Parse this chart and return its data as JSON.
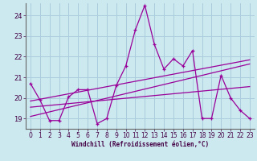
{
  "xlabel": "Windchill (Refroidissement éolien,°C)",
  "background_color": "#cce9f0",
  "grid_color": "#aaccdd",
  "line_color": "#990099",
  "xlim": [
    -0.5,
    23.5
  ],
  "ylim": [
    18.5,
    24.6
  ],
  "xticks": [
    0,
    1,
    2,
    3,
    4,
    5,
    6,
    7,
    8,
    9,
    10,
    11,
    12,
    13,
    14,
    15,
    16,
    17,
    18,
    19,
    20,
    21,
    22,
    23
  ],
  "yticks": [
    19,
    20,
    21,
    22,
    23,
    24
  ],
  "main_x": [
    0,
    1,
    2,
    3,
    4,
    5,
    6,
    7,
    8,
    9,
    10,
    11,
    12,
    13,
    14,
    15,
    16,
    17,
    18,
    19,
    20,
    21,
    22,
    23
  ],
  "main_y": [
    20.7,
    19.9,
    18.9,
    18.9,
    20.05,
    20.4,
    20.4,
    18.75,
    19.0,
    20.6,
    21.55,
    23.3,
    24.5,
    22.6,
    21.4,
    21.9,
    21.55,
    22.3,
    19.0,
    19.0,
    21.1,
    20.0,
    19.4,
    19.0
  ],
  "trend1_x": [
    0,
    23
  ],
  "trend1_y": [
    19.1,
    21.65
  ],
  "trend2_x": [
    0,
    23
  ],
  "trend2_y": [
    19.55,
    20.55
  ],
  "trend3_x": [
    0,
    23
  ],
  "trend3_y": [
    19.85,
    21.85
  ]
}
